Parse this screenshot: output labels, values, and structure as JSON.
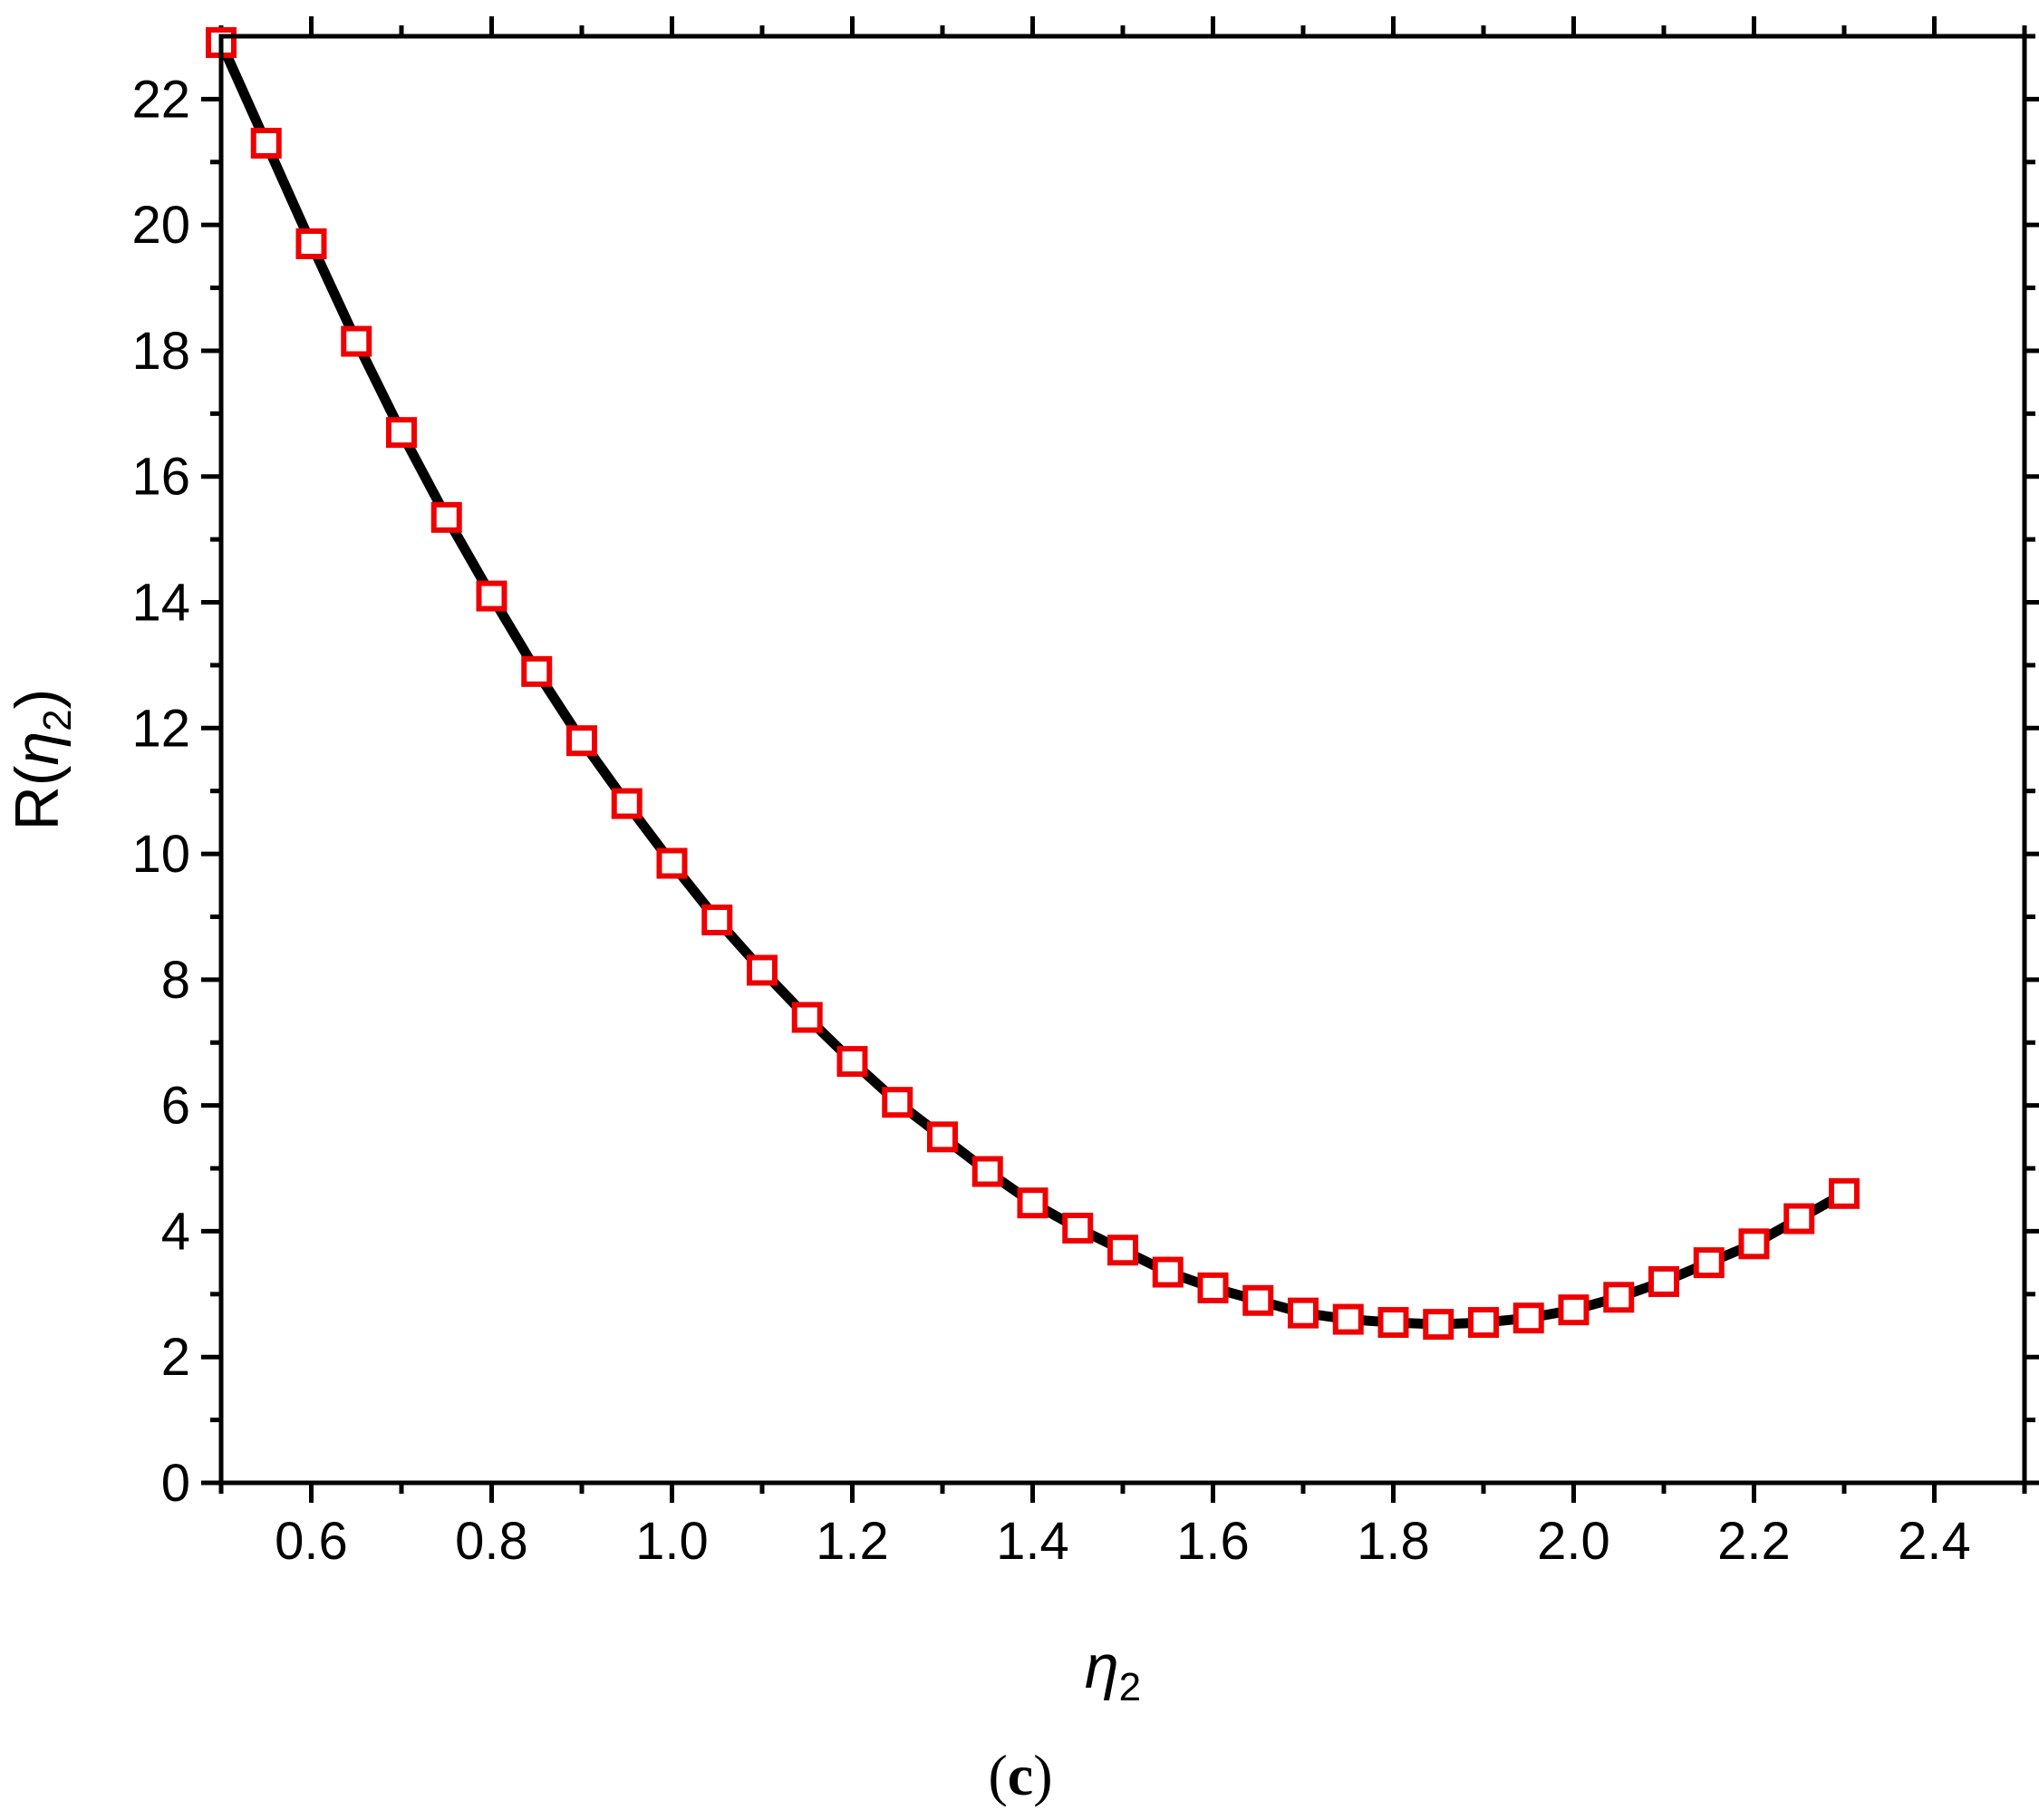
{
  "chart_data": {
    "type": "line",
    "panel_label_open": "(",
    "panel_label_letter": "c",
    "panel_label_close": ")",
    "xlabel": {
      "symbol": "η",
      "subscript": "2"
    },
    "ylabel": {
      "prefix": "R(",
      "symbol": "η",
      "subscript": "2",
      "suffix": ")"
    },
    "xlim": [
      0.5,
      2.5
    ],
    "ylim": [
      0,
      23
    ],
    "x_ticks": [
      "0.6",
      "0.8",
      "1.0",
      "1.2",
      "1.4",
      "1.6",
      "1.8",
      "2.0",
      "2.2",
      "2.4"
    ],
    "y_ticks": [
      "0",
      "2",
      "4",
      "6",
      "8",
      "10",
      "12",
      "14",
      "16",
      "18",
      "20",
      "22"
    ],
    "grid": false,
    "colors": {
      "line": "#000000",
      "markers": "#ee0000"
    },
    "series": [
      {
        "style": "line",
        "x": [
          0.5,
          0.55,
          0.6,
          0.65,
          0.7,
          0.75,
          0.8,
          0.85,
          0.9,
          0.95,
          1.0,
          1.05,
          1.1,
          1.15,
          1.2,
          1.25,
          1.3,
          1.35,
          1.4,
          1.45,
          1.5,
          1.55,
          1.6,
          1.65,
          1.7,
          1.75,
          1.8,
          1.85,
          1.9,
          1.95,
          2.0,
          2.05,
          2.1,
          2.15,
          2.2,
          2.25,
          2.3
        ],
        "y": [
          22.9,
          21.3,
          19.7,
          18.15,
          16.7,
          15.35,
          14.1,
          12.9,
          11.8,
          10.8,
          9.85,
          8.95,
          8.15,
          7.4,
          6.7,
          6.05,
          5.5,
          4.95,
          4.45,
          4.05,
          3.7,
          3.35,
          3.1,
          2.9,
          2.7,
          2.6,
          2.55,
          2.52,
          2.55,
          2.62,
          2.75,
          2.95,
          3.2,
          3.5,
          3.8,
          4.2,
          4.6
        ]
      },
      {
        "style": "open-square-markers",
        "x": [
          0.5,
          0.55,
          0.6,
          0.65,
          0.7,
          0.75,
          0.8,
          0.85,
          0.9,
          0.95,
          1.0,
          1.05,
          1.1,
          1.15,
          1.2,
          1.25,
          1.3,
          1.35,
          1.4,
          1.45,
          1.5,
          1.55,
          1.6,
          1.65,
          1.7,
          1.75,
          1.8,
          1.85,
          1.9,
          1.95,
          2.0,
          2.05,
          2.1,
          2.15,
          2.2,
          2.25,
          2.3
        ],
        "y": [
          22.9,
          21.3,
          19.7,
          18.15,
          16.7,
          15.35,
          14.1,
          12.9,
          11.8,
          10.8,
          9.85,
          8.95,
          8.15,
          7.4,
          6.7,
          6.05,
          5.5,
          4.95,
          4.45,
          4.05,
          3.7,
          3.35,
          3.1,
          2.9,
          2.7,
          2.6,
          2.55,
          2.52,
          2.55,
          2.62,
          2.75,
          2.95,
          3.2,
          3.5,
          3.8,
          4.2,
          4.6
        ]
      }
    ]
  }
}
